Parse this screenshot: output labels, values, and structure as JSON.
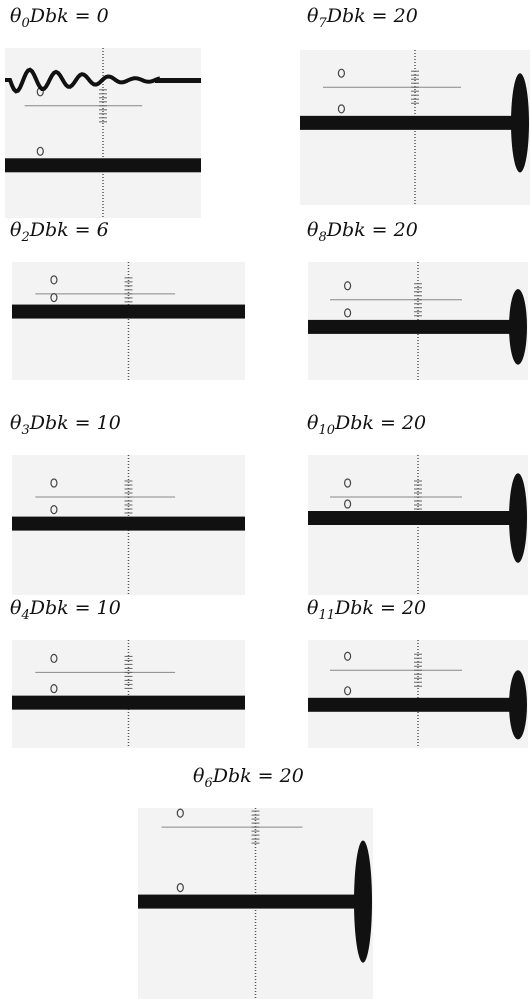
{
  "panels": [
    {
      "symbol": "θ",
      "sub": "0",
      "expr": "Dbk = 0"
    },
    {
      "symbol": "θ",
      "sub": "7",
      "expr": "Dbk = 20"
    },
    {
      "symbol": "θ",
      "sub": "2",
      "expr": "Dbk = 6"
    },
    {
      "symbol": "θ",
      "sub": "8",
      "expr": "Dbk = 20"
    },
    {
      "symbol": "θ",
      "sub": "3",
      "expr": "Dbk = 10"
    },
    {
      "symbol": "θ",
      "sub": "10",
      "expr": "Dbk = 20"
    },
    {
      "symbol": "θ",
      "sub": "4",
      "expr": "Dbk = 10"
    },
    {
      "symbol": "θ",
      "sub": "11",
      "expr": "Dbk = 20"
    },
    {
      "symbol": "θ",
      "sub": "6",
      "expr": "Dbk = 20"
    }
  ]
}
